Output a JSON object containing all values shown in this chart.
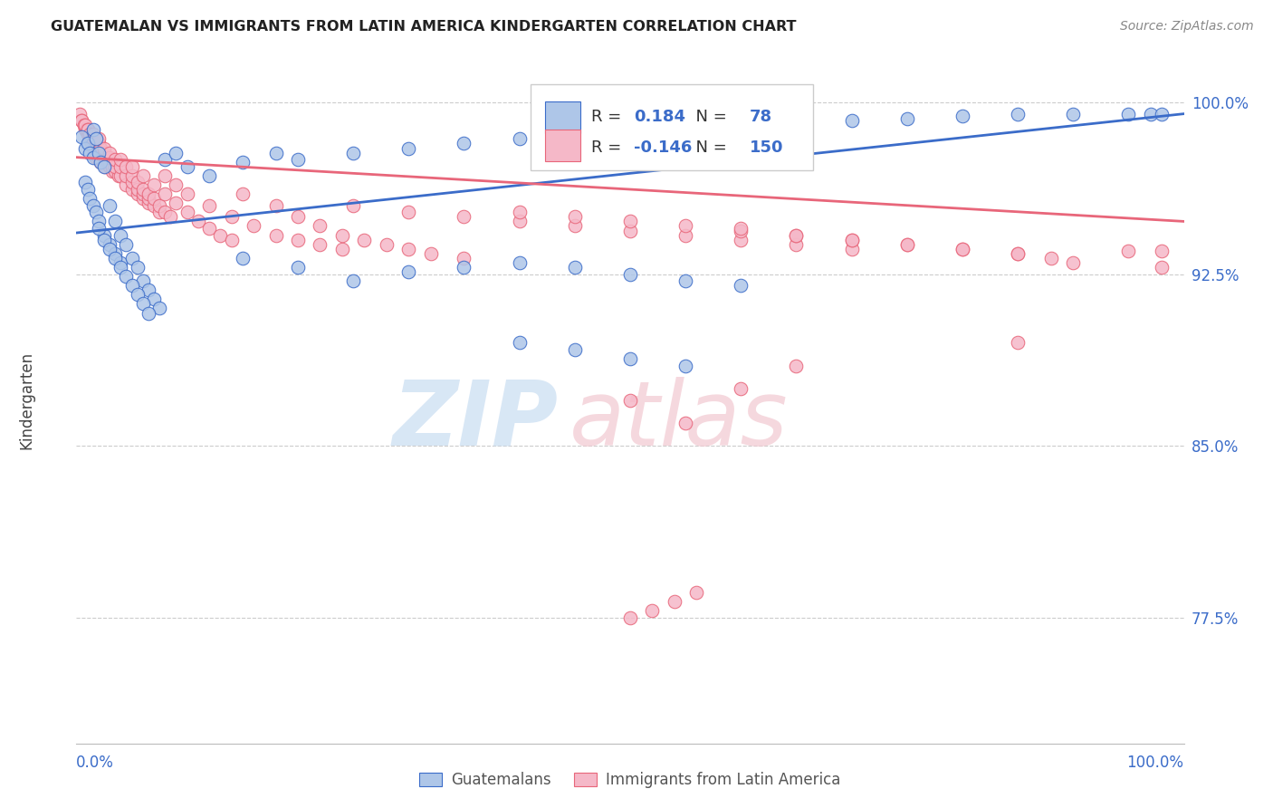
{
  "title": "GUATEMALAN VS IMMIGRANTS FROM LATIN AMERICA KINDERGARTEN CORRELATION CHART",
  "source": "Source: ZipAtlas.com",
  "ylabel": "Kindergarten",
  "ytick_labels": [
    "100.0%",
    "92.5%",
    "85.0%",
    "77.5%"
  ],
  "ytick_values": [
    1.0,
    0.925,
    0.85,
    0.775
  ],
  "legend_blue_R": "0.184",
  "legend_blue_N": "78",
  "legend_pink_R": "-0.146",
  "legend_pink_N": "150",
  "blue_scatter_x": [
    0.005,
    0.008,
    0.01,
    0.012,
    0.015,
    0.015,
    0.018,
    0.02,
    0.022,
    0.025,
    0.008,
    0.01,
    0.012,
    0.015,
    0.018,
    0.02,
    0.025,
    0.03,
    0.035,
    0.04,
    0.03,
    0.035,
    0.04,
    0.045,
    0.05,
    0.055,
    0.06,
    0.065,
    0.07,
    0.075,
    0.02,
    0.025,
    0.03,
    0.035,
    0.04,
    0.045,
    0.05,
    0.055,
    0.06,
    0.065,
    0.08,
    0.09,
    0.1,
    0.12,
    0.15,
    0.18,
    0.2,
    0.25,
    0.3,
    0.35,
    0.4,
    0.45,
    0.5,
    0.55,
    0.6,
    0.65,
    0.7,
    0.75,
    0.8,
    0.85,
    0.9,
    0.95,
    0.97,
    0.98,
    0.15,
    0.2,
    0.25,
    0.3,
    0.35,
    0.4,
    0.45,
    0.5,
    0.55,
    0.6,
    0.4,
    0.45,
    0.5,
    0.55
  ],
  "blue_scatter_y": [
    0.985,
    0.98,
    0.982,
    0.978,
    0.976,
    0.988,
    0.984,
    0.978,
    0.974,
    0.972,
    0.965,
    0.962,
    0.958,
    0.955,
    0.952,
    0.948,
    0.942,
    0.938,
    0.934,
    0.93,
    0.955,
    0.948,
    0.942,
    0.938,
    0.932,
    0.928,
    0.922,
    0.918,
    0.914,
    0.91,
    0.945,
    0.94,
    0.936,
    0.932,
    0.928,
    0.924,
    0.92,
    0.916,
    0.912,
    0.908,
    0.975,
    0.978,
    0.972,
    0.968,
    0.974,
    0.978,
    0.975,
    0.978,
    0.98,
    0.982,
    0.984,
    0.986,
    0.988,
    0.99,
    0.99,
    0.99,
    0.992,
    0.993,
    0.994,
    0.995,
    0.995,
    0.995,
    0.995,
    0.995,
    0.932,
    0.928,
    0.922,
    0.926,
    0.928,
    0.93,
    0.928,
    0.925,
    0.922,
    0.92,
    0.895,
    0.892,
    0.888,
    0.885
  ],
  "pink_scatter_x": [
    0.003,
    0.005,
    0.007,
    0.008,
    0.01,
    0.012,
    0.014,
    0.015,
    0.016,
    0.018,
    0.005,
    0.007,
    0.009,
    0.01,
    0.012,
    0.014,
    0.016,
    0.018,
    0.02,
    0.022,
    0.008,
    0.01,
    0.012,
    0.014,
    0.016,
    0.018,
    0.02,
    0.022,
    0.024,
    0.026,
    0.01,
    0.012,
    0.015,
    0.018,
    0.02,
    0.022,
    0.025,
    0.028,
    0.03,
    0.032,
    0.015,
    0.018,
    0.02,
    0.022,
    0.025,
    0.028,
    0.03,
    0.032,
    0.035,
    0.038,
    0.02,
    0.025,
    0.03,
    0.035,
    0.04,
    0.045,
    0.05,
    0.055,
    0.06,
    0.065,
    0.03,
    0.035,
    0.04,
    0.045,
    0.05,
    0.055,
    0.06,
    0.065,
    0.07,
    0.075,
    0.04,
    0.045,
    0.05,
    0.055,
    0.06,
    0.065,
    0.07,
    0.075,
    0.08,
    0.085,
    0.05,
    0.06,
    0.07,
    0.08,
    0.09,
    0.1,
    0.11,
    0.12,
    0.13,
    0.14,
    0.08,
    0.09,
    0.1,
    0.12,
    0.14,
    0.16,
    0.18,
    0.2,
    0.22,
    0.24,
    0.15,
    0.18,
    0.2,
    0.22,
    0.24,
    0.26,
    0.28,
    0.3,
    0.32,
    0.35,
    0.25,
    0.3,
    0.35,
    0.4,
    0.45,
    0.5,
    0.55,
    0.6,
    0.65,
    0.7,
    0.4,
    0.45,
    0.5,
    0.55,
    0.6,
    0.65,
    0.7,
    0.75,
    0.8,
    0.85,
    0.6,
    0.65,
    0.7,
    0.75,
    0.8,
    0.85,
    0.88,
    0.9,
    0.95,
    0.98,
    0.5,
    0.55,
    0.6,
    0.65,
    0.85,
    0.98,
    0.5,
    0.52,
    0.54,
    0.56
  ],
  "pink_scatter_y": [
    0.995,
    0.992,
    0.99,
    0.988,
    0.986,
    0.984,
    0.982,
    0.98,
    0.978,
    0.976,
    0.992,
    0.99,
    0.988,
    0.986,
    0.984,
    0.982,
    0.98,
    0.978,
    0.976,
    0.974,
    0.99,
    0.988,
    0.986,
    0.984,
    0.982,
    0.98,
    0.978,
    0.976,
    0.974,
    0.972,
    0.988,
    0.986,
    0.984,
    0.982,
    0.98,
    0.978,
    0.976,
    0.974,
    0.972,
    0.97,
    0.986,
    0.984,
    0.982,
    0.98,
    0.978,
    0.976,
    0.974,
    0.972,
    0.97,
    0.968,
    0.984,
    0.98,
    0.976,
    0.972,
    0.968,
    0.964,
    0.962,
    0.96,
    0.958,
    0.956,
    0.978,
    0.975,
    0.972,
    0.968,
    0.965,
    0.962,
    0.96,
    0.958,
    0.955,
    0.952,
    0.975,
    0.972,
    0.968,
    0.965,
    0.962,
    0.96,
    0.958,
    0.955,
    0.952,
    0.95,
    0.972,
    0.968,
    0.964,
    0.96,
    0.956,
    0.952,
    0.948,
    0.945,
    0.942,
    0.94,
    0.968,
    0.964,
    0.96,
    0.955,
    0.95,
    0.946,
    0.942,
    0.94,
    0.938,
    0.936,
    0.96,
    0.955,
    0.95,
    0.946,
    0.942,
    0.94,
    0.938,
    0.936,
    0.934,
    0.932,
    0.955,
    0.952,
    0.95,
    0.948,
    0.946,
    0.944,
    0.942,
    0.94,
    0.938,
    0.936,
    0.952,
    0.95,
    0.948,
    0.946,
    0.944,
    0.942,
    0.94,
    0.938,
    0.936,
    0.934,
    0.945,
    0.942,
    0.94,
    0.938,
    0.936,
    0.934,
    0.932,
    0.93,
    0.935,
    0.928,
    0.87,
    0.86,
    0.875,
    0.885,
    0.895,
    0.935,
    0.775,
    0.778,
    0.782,
    0.786
  ],
  "blue_color": "#aec6e8",
  "pink_color": "#f5b8c8",
  "blue_line_color": "#3b6cc9",
  "pink_line_color": "#e8667a",
  "blue_trend_y0": 0.943,
  "blue_trend_y1": 0.995,
  "pink_trend_y0": 0.976,
  "pink_trend_y1": 0.948,
  "xlim": [
    0.0,
    1.0
  ],
  "ylim": [
    0.72,
    1.02
  ],
  "background_color": "#ffffff"
}
